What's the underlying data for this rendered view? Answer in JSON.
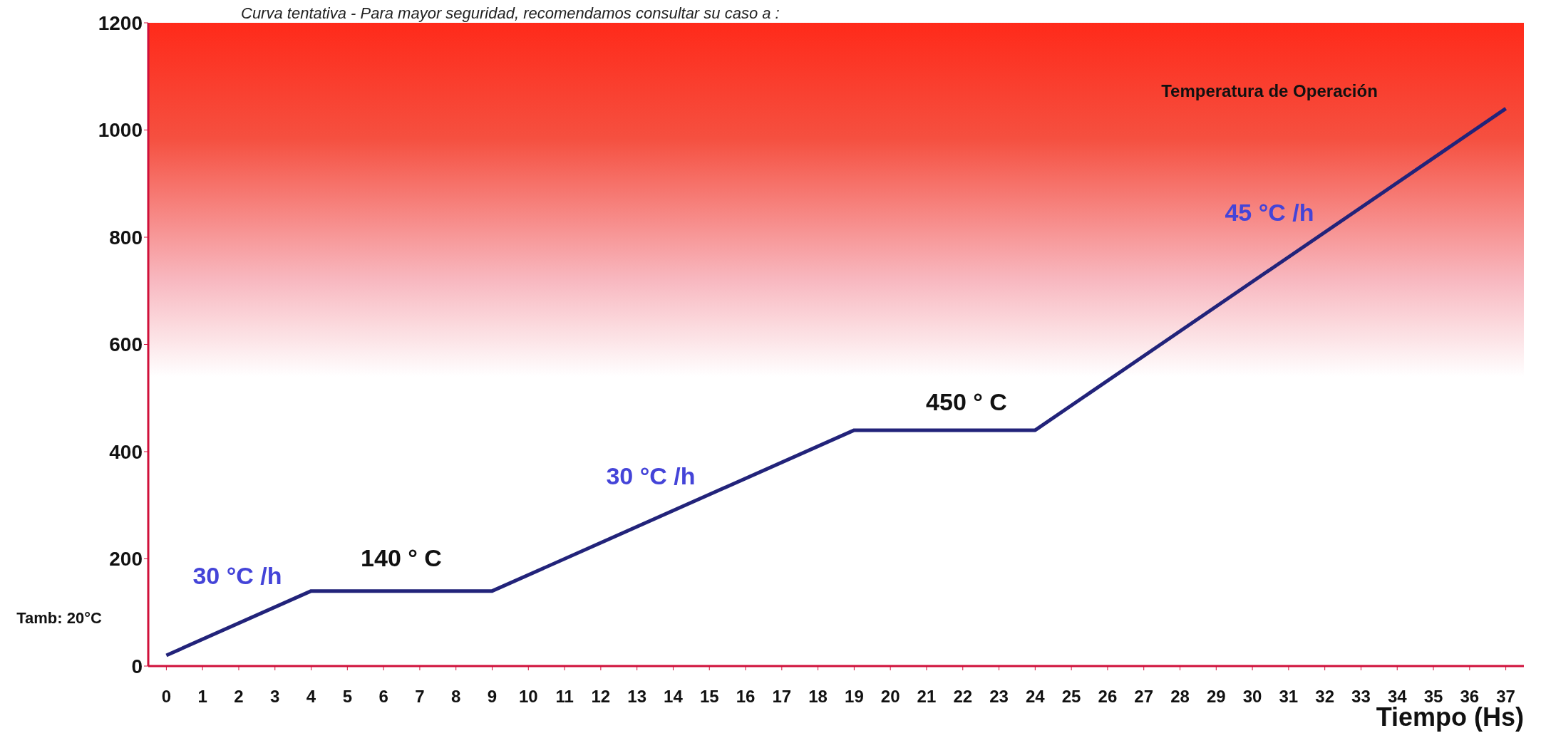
{
  "chart_data": {
    "type": "line",
    "title": "Curva tentativa - Para mayor seguridad, recomendamos consultar su caso a :",
    "xlabel": "Tiempo (Hs)",
    "x": [
      0,
      4,
      9,
      19,
      24,
      37
    ],
    "series": [
      {
        "color": "#22237a",
        "values": [
          20,
          140,
          140,
          440,
          440,
          1040
        ]
      }
    ],
    "xlim": [
      -0.5,
      37.5
    ],
    "xticks": [
      0,
      1,
      2,
      3,
      4,
      5,
      6,
      7,
      8,
      9,
      10,
      11,
      12,
      13,
      14,
      15,
      16,
      17,
      18,
      19,
      20,
      21,
      22,
      23,
      24,
      25,
      26,
      27,
      28,
      29,
      30,
      31,
      32,
      33,
      34,
      35,
      36,
      37
    ],
    "ylim": [
      0,
      1200
    ],
    "yticks": [
      0,
      200,
      400,
      600,
      800,
      1000,
      1200
    ],
    "marker": "none",
    "line_style": "solid",
    "annotations": [
      "30 °C /h",
      "140 ° C",
      "30 °C /h",
      "450 ° C",
      "45 °C /h",
      "Temperatura de Operación",
      "Tamb: 20°C"
    ]
  }
}
